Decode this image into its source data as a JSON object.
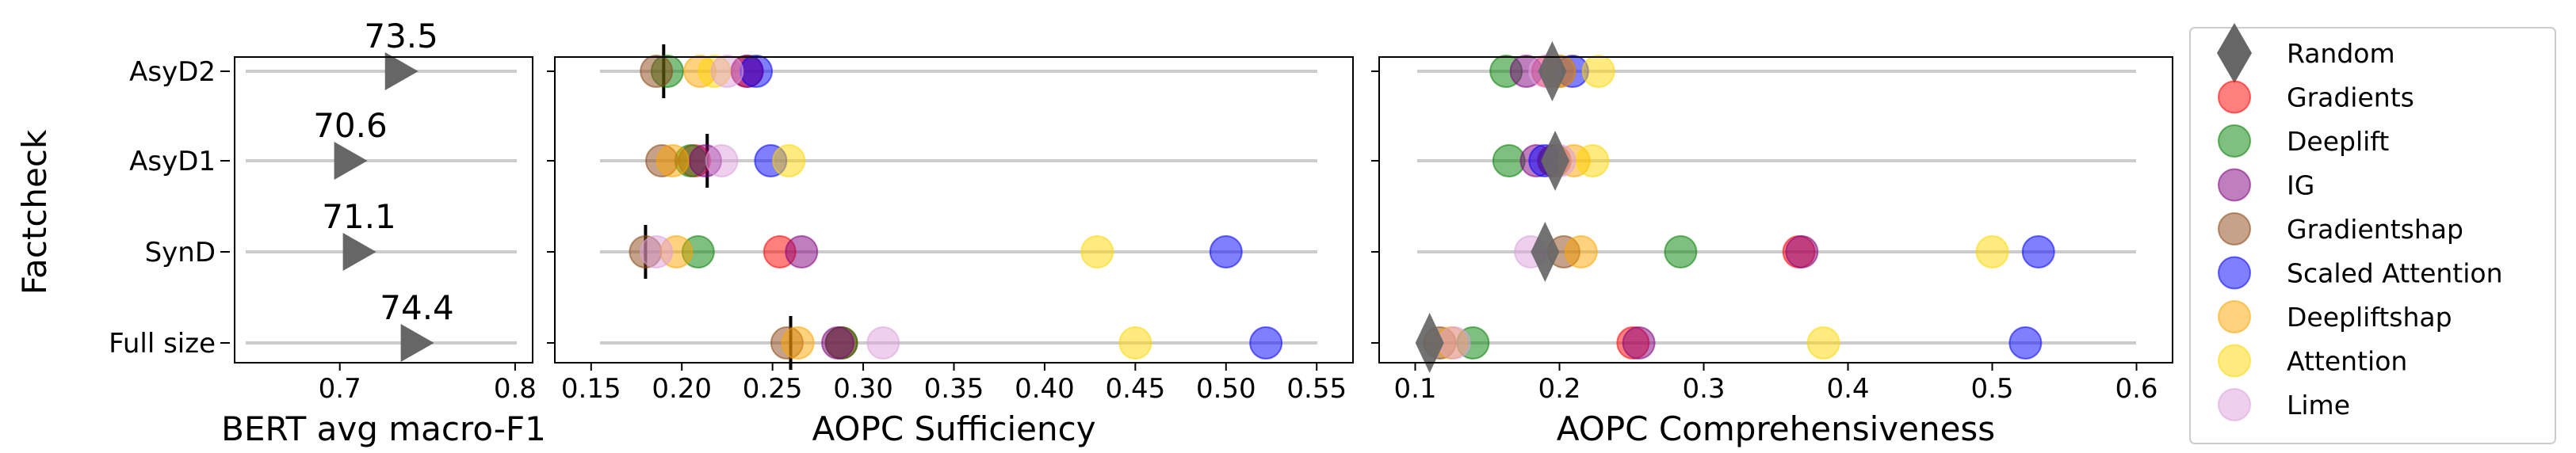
{
  "chart_data": [
    {
      "type": "scatter",
      "ylabel": "Factcheck",
      "xlabel": "BERT avg macro-F1",
      "categories": [
        "AsyD2",
        "AsyD1",
        "SynD",
        "Full size"
      ],
      "xlim": [
        0.64,
        0.81
      ],
      "xticks": [
        "0.7",
        "0.8"
      ],
      "values": [
        73.5,
        70.6,
        71.1,
        74.4
      ],
      "data_labels": [
        "73.5",
        "70.6",
        "71.1",
        "74.4"
      ],
      "marker": "triangle-right",
      "grid": false
    },
    {
      "type": "scatter",
      "xlabel": "AOPC Sufficiency",
      "categories": [
        "AsyD2",
        "AsyD1",
        "SynD",
        "Full size"
      ],
      "xlim": [
        0.13,
        0.57
      ],
      "xticks": [
        "0.15",
        "0.20",
        "0.25",
        "0.30",
        "0.35",
        "0.40",
        "0.45",
        "0.50",
        "0.55"
      ],
      "random_baseline": [
        0.19,
        0.214,
        0.18,
        0.26
      ],
      "series": [
        {
          "name": "Gradients",
          "values": [
            0.236,
            0.207,
            0.254,
            0.288
          ]
        },
        {
          "name": "Deeplift",
          "values": [
            0.192,
            0.205,
            0.209,
            0.288
          ]
        },
        {
          "name": "IG",
          "values": [
            0.236,
            0.213,
            0.266,
            0.286
          ]
        },
        {
          "name": "Gradientshap",
          "values": [
            0.186,
            0.189,
            0.18,
            0.258
          ]
        },
        {
          "name": "Scaled Attention",
          "values": [
            0.241,
            0.249,
            0.5,
            0.522
          ]
        },
        {
          "name": "Deepliftshap",
          "values": [
            0.21,
            0.195,
            0.197,
            0.264
          ]
        },
        {
          "name": "Attention",
          "values": [
            0.218,
            0.259,
            0.429,
            0.45
          ]
        },
        {
          "name": "Lime",
          "values": [
            0.225,
            0.222,
            0.186,
            0.311
          ]
        }
      ]
    },
    {
      "type": "scatter",
      "xlabel": "AOPC Comprehensiveness",
      "categories": [
        "AsyD2",
        "AsyD1",
        "SynD",
        "Full size"
      ],
      "xlim": [
        0.075,
        0.625
      ],
      "xticks": [
        "0.1",
        "0.2",
        "0.3",
        "0.4",
        "0.5",
        "0.6"
      ],
      "random_baseline": [
        0.195,
        0.197,
        0.19,
        0.11
      ],
      "series": [
        {
          "name": "Gradients",
          "values": [
            0.192,
            0.196,
            0.366,
            0.251
          ]
        },
        {
          "name": "Deeplift",
          "values": [
            0.163,
            0.165,
            0.284,
            0.14
          ]
        },
        {
          "name": "IG",
          "values": [
            0.177,
            0.184,
            0.368,
            0.255
          ]
        },
        {
          "name": "Gradientshap",
          "values": [
            0.2,
            0.197,
            0.203,
            0.117
          ]
        },
        {
          "name": "Scaled Attention",
          "values": [
            0.209,
            0.19,
            0.532,
            0.523
          ]
        },
        {
          "name": "Deepliftshap",
          "values": [
            0.2,
            0.21,
            0.215,
            0.125
          ]
        },
        {
          "name": "Attention",
          "values": [
            0.227,
            0.223,
            0.5,
            0.383
          ]
        },
        {
          "name": "Lime",
          "values": [
            0.19,
            0.2,
            0.18,
            0.127
          ]
        }
      ]
    }
  ],
  "legend": {
    "placement": "right",
    "entries": [
      {
        "name": "Random",
        "marker": "diamond",
        "color": "#666666"
      },
      {
        "name": "Gradients",
        "marker": "circle",
        "color": "#ff0000"
      },
      {
        "name": "Deeplift",
        "marker": "circle",
        "color": "#008000"
      },
      {
        "name": "IG",
        "marker": "circle",
        "color": "#800080"
      },
      {
        "name": "Gradientshap",
        "marker": "circle",
        "color": "#8b4513"
      },
      {
        "name": "Scaled Attention",
        "marker": "circle",
        "color": "#0000ff"
      },
      {
        "name": "Deepliftshap",
        "marker": "circle",
        "color": "#ffa500"
      },
      {
        "name": "Attention",
        "marker": "circle",
        "color": "#ffd700"
      },
      {
        "name": "Lime",
        "marker": "circle",
        "color": "#dda0dd"
      }
    ]
  },
  "colors": {
    "grid_line": "#cccccc",
    "triangle": "#666666",
    "baseline_tick": "#000000"
  }
}
